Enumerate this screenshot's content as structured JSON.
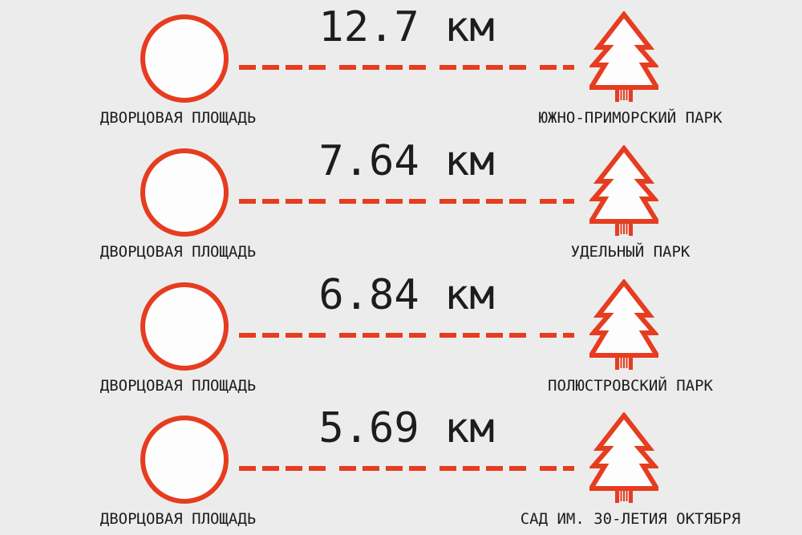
{
  "colors": {
    "background": "#ECECEC",
    "accent": "#E63C1F",
    "text": "#1D1D1D"
  },
  "icons": {
    "origin": "circle-outline-icon",
    "destination": "fir-tree-icon",
    "connector": "dashed-line"
  },
  "rows": [
    {
      "origin": "ДВОРЦОВАЯ ПЛОЩАДЬ",
      "distance": "12.7 км",
      "destination": "ЮЖНО-ПРИМОРСКИЙ ПАРК"
    },
    {
      "origin": "ДВОРЦОВАЯ ПЛОЩАДЬ",
      "distance": "7.64 км",
      "destination": "УДЕЛЬНЫЙ ПАРК"
    },
    {
      "origin": "ДВОРЦОВАЯ ПЛОЩАДЬ",
      "distance": "6.84 км",
      "destination": "ПОЛЮСТРОВСКИЙ ПАРК"
    },
    {
      "origin": "ДВОРЦОВАЯ ПЛОЩАДЬ",
      "distance": "5.69 км",
      "destination": "САД ИМ. 30-ЛЕТИЯ ОКТЯБРЯ"
    }
  ]
}
